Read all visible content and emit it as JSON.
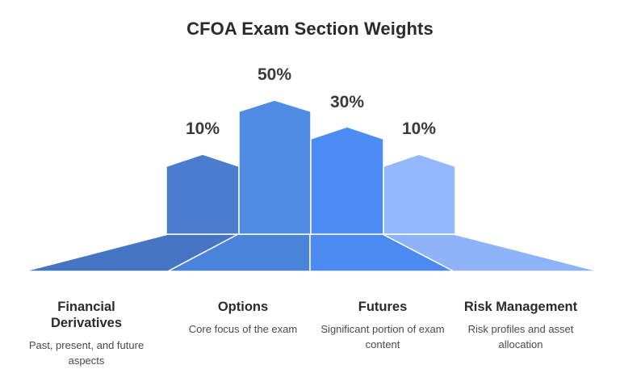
{
  "title": "CFOA Exam Section Weights",
  "sections": [
    {
      "name": "Financial Derivatives",
      "percent_label": "10%",
      "percent": 10,
      "description": "Past, present, and future aspects",
      "color": "#4a7dcf",
      "face_color": "#4675c4"
    },
    {
      "name": "Options",
      "percent_label": "50%",
      "percent": 50,
      "description": "Core focus of the exam",
      "color": "#4f8ae3",
      "face_color": "#4a83da"
    },
    {
      "name": "Futures",
      "percent_label": "30%",
      "percent": 30,
      "description": "Significant portion of exam content",
      "color": "#4b8df5",
      "face_color": "#4b8af0"
    },
    {
      "name": "Risk Management",
      "percent_label": "10%",
      "percent": 10,
      "description": "Risk profiles and asset allocation",
      "color": "#93b8fb",
      "face_color": "#8fb3f8"
    }
  ]
}
